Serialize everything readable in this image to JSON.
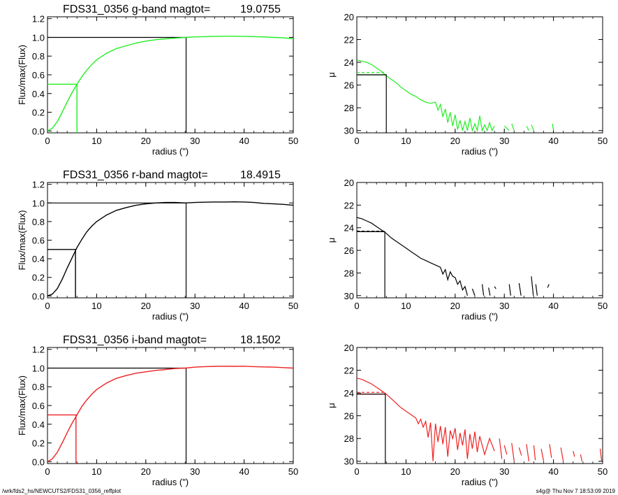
{
  "footer": {
    "left": "/wrk/fds2_hs/NEWCUTS2/FDS31_0356_reffplot",
    "right": "s4g@  Thu Nov  7 18:53:09 2019"
  },
  "chart_data": [
    {
      "type": "line",
      "panel": "g-growth",
      "title": "FDS31_0356 g-band  magtot=",
      "title_value": "19.0755",
      "xlabel": "radius (\")",
      "ylabel": "Flux/max(Flux)",
      "xlim": [
        0,
        50
      ],
      "ylim": [
        -0.02,
        1.22
      ],
      "xticks": [
        0,
        10,
        20,
        30,
        40,
        50
      ],
      "yticks": [
        "0.0",
        "0.2",
        "0.4",
        "0.6",
        "0.8",
        "1.0",
        "1.2"
      ],
      "color": "#22ee22",
      "grid": false,
      "series": [
        {
          "x": [
            0,
            1,
            2,
            3,
            4,
            5,
            6,
            7,
            8,
            9,
            10,
            12,
            14,
            16,
            18,
            20,
            22,
            24,
            26,
            28,
            30,
            32,
            34,
            36,
            38,
            40,
            42,
            44,
            46,
            48,
            50
          ],
          "values": [
            0,
            0.03,
            0.1,
            0.2,
            0.31,
            0.41,
            0.5,
            0.58,
            0.65,
            0.71,
            0.76,
            0.83,
            0.88,
            0.91,
            0.94,
            0.96,
            0.975,
            0.985,
            0.992,
            1.0,
            1.005,
            1.008,
            1.01,
            1.012,
            1.012,
            1.01,
            1.008,
            1.005,
            1.0,
            0.995,
            0.985
          ]
        }
      ],
      "annotations": {
        "r_half": 6.0,
        "half_level": 0.5,
        "r_total": 28.2,
        "total_level": 1.0
      }
    },
    {
      "type": "line",
      "panel": "g-profile",
      "xlabel": "radius (\")",
      "ylabel": "μ",
      "xlim": [
        0,
        50
      ],
      "ylim": [
        30.2,
        20
      ],
      "inverted_y": true,
      "xticks": [
        0,
        10,
        20,
        30,
        40,
        50
      ],
      "yticks": [
        20,
        22,
        24,
        26,
        28,
        30
      ],
      "color": "#22ee22",
      "grid": false,
      "series": [
        {
          "x": [
            0,
            1,
            2,
            3,
            4,
            5,
            6,
            7,
            8,
            9,
            10,
            11,
            12,
            13,
            14,
            15,
            16,
            16.5,
            17,
            17.5,
            18,
            18.5,
            19,
            19.5,
            20,
            20.5,
            21,
            21.5,
            22,
            22.5,
            23,
            23.5,
            24,
            24.5,
            25,
            25.5,
            26,
            26.5,
            27,
            27.5,
            28
          ],
          "values": [
            23.8,
            23.9,
            24.0,
            24.2,
            24.5,
            24.8,
            25.2,
            25.5,
            25.8,
            26.2,
            26.5,
            26.8,
            27.0,
            27.3,
            27.5,
            27.6,
            27.5,
            28.2,
            27.7,
            28.8,
            28.1,
            29.3,
            28.4,
            29.6,
            28.6,
            29.9,
            29.1,
            30.0,
            29.2,
            30.0,
            28.9,
            30.0,
            29.4,
            30.0,
            28.7,
            30.0,
            29.5,
            30.0,
            29.3,
            30.0,
            29.6
          ]
        }
      ],
      "extra_segments": [
        [
          30,
          29.6,
          31,
          30.0
        ],
        [
          31.5,
          29.4,
          32,
          30.0
        ],
        [
          34.5,
          29.6,
          35,
          30.0
        ],
        [
          35.5,
          29.5,
          36,
          30.0
        ],
        [
          39.8,
          29.4,
          40,
          30.0
        ]
      ],
      "annotations": {
        "r_half": 6.0,
        "mu_half": 25.1,
        "mu_mean": 24.9
      }
    },
    {
      "type": "line",
      "panel": "r-growth",
      "title": "FDS31_0356 r-band  magtot=",
      "title_value": "18.4915",
      "xlabel": "radius (\")",
      "ylabel": "Flux/max(Flux)",
      "xlim": [
        0,
        50
      ],
      "ylim": [
        -0.02,
        1.22
      ],
      "xticks": [
        0,
        10,
        20,
        30,
        40,
        50
      ],
      "yticks": [
        "0.0",
        "0.2",
        "0.4",
        "0.6",
        "0.8",
        "1.0",
        "1.2"
      ],
      "color": "#000000",
      "grid": false,
      "series": [
        {
          "x": [
            0,
            1,
            2,
            3,
            4,
            5,
            6,
            7,
            8,
            9,
            10,
            12,
            14,
            16,
            18,
            20,
            22,
            24,
            26,
            28,
            30,
            32,
            34,
            36,
            38,
            40,
            42,
            44,
            46,
            48,
            50
          ],
          "values": [
            0,
            0.02,
            0.08,
            0.18,
            0.3,
            0.41,
            0.52,
            0.61,
            0.69,
            0.75,
            0.8,
            0.87,
            0.92,
            0.95,
            0.975,
            0.99,
            1.0,
            1.005,
            1.005,
            1.0,
            1.005,
            1.008,
            1.01,
            1.01,
            1.012,
            1.01,
            1.005,
            0.995,
            0.99,
            0.985,
            0.975
          ]
        }
      ],
      "annotations": {
        "r_half": 5.7,
        "half_level": 0.5,
        "r_total": 28.2,
        "total_level": 1.0
      }
    },
    {
      "type": "line",
      "panel": "r-profile",
      "xlabel": "radius (\")",
      "ylabel": "μ",
      "xlim": [
        0,
        50
      ],
      "ylim": [
        30.2,
        20
      ],
      "inverted_y": true,
      "xticks": [
        0,
        10,
        20,
        30,
        40,
        50
      ],
      "yticks": [
        20,
        22,
        24,
        26,
        28,
        30
      ],
      "color": "#000000",
      "grid": false,
      "series": [
        {
          "x": [
            0,
            1,
            2,
            3,
            4,
            5,
            6,
            7,
            8,
            9,
            10,
            11,
            12,
            13,
            14,
            15,
            16,
            17,
            17.5,
            18,
            18.5,
            19,
            19.5,
            20,
            20.5,
            21,
            21.5,
            22,
            22.5
          ],
          "values": [
            23.1,
            23.2,
            23.4,
            23.6,
            23.9,
            24.2,
            24.5,
            24.9,
            25.2,
            25.5,
            25.8,
            26.1,
            26.4,
            26.7,
            26.9,
            27.1,
            27.3,
            27.5,
            28.1,
            27.7,
            28.6,
            27.9,
            28.3,
            28.4,
            29.0,
            28.7,
            29.5,
            29.2,
            30.0
          ]
        }
      ],
      "extra_segments": [
        [
          23.5,
          29.4,
          24,
          30.0
        ],
        [
          25.5,
          29.0,
          25.8,
          30.0
        ],
        [
          26.8,
          29.3,
          27.1,
          30.0
        ],
        [
          28.0,
          29.2,
          28.3,
          29.4
        ],
        [
          31,
          29.0,
          31.3,
          30.0
        ],
        [
          33,
          28.9,
          33.4,
          30.0
        ],
        [
          35.5,
          28.3,
          35.9,
          30.0
        ],
        [
          36.4,
          29.0,
          36.7,
          30.0
        ],
        [
          38.8,
          29.3,
          39.1,
          29.0
        ]
      ],
      "annotations": {
        "r_half": 5.7,
        "mu_half": 24.35,
        "mu_mean": 24.3
      }
    },
    {
      "type": "line",
      "panel": "i-growth",
      "title": "FDS31_0356 i-band  magtot=",
      "title_value": "18.1502",
      "xlabel": "radius (\")",
      "ylabel": "Flux/max(Flux)",
      "xlim": [
        0,
        50
      ],
      "ylim": [
        -0.02,
        1.22
      ],
      "xticks": [
        0,
        10,
        20,
        30,
        40,
        50
      ],
      "yticks": [
        "0.0",
        "0.2",
        "0.4",
        "0.6",
        "0.8",
        "1.0",
        "1.2"
      ],
      "color": "#ee2222",
      "grid": false,
      "series": [
        {
          "x": [
            0,
            1,
            2,
            3,
            4,
            5,
            6,
            7,
            8,
            9,
            10,
            12,
            14,
            16,
            18,
            20,
            22,
            24,
            26,
            28,
            30,
            32,
            34,
            36,
            38,
            40,
            42,
            44,
            46,
            48,
            50
          ],
          "values": [
            0,
            0.03,
            0.1,
            0.2,
            0.31,
            0.41,
            0.5,
            0.59,
            0.66,
            0.72,
            0.77,
            0.84,
            0.89,
            0.92,
            0.945,
            0.96,
            0.975,
            0.985,
            0.995,
            1.0,
            1.01,
            1.015,
            1.018,
            1.02,
            1.018,
            1.02,
            1.015,
            1.012,
            1.01,
            1.005,
            1.0
          ]
        }
      ],
      "annotations": {
        "r_half": 5.8,
        "half_level": 0.5,
        "r_total": 28.2,
        "total_level": 1.0
      }
    },
    {
      "type": "line",
      "panel": "i-profile",
      "xlabel": "radius (\")",
      "ylabel": "μ",
      "xlim": [
        0,
        50
      ],
      "ylim": [
        30.2,
        20
      ],
      "inverted_y": true,
      "xticks": [
        0,
        10,
        20,
        30,
        40,
        50
      ],
      "yticks": [
        20,
        22,
        24,
        26,
        28,
        30
      ],
      "color": "#ee2222",
      "grid": false,
      "series": [
        {
          "x": [
            0,
            1,
            2,
            3,
            4,
            5,
            6,
            7,
            8,
            9,
            10,
            11,
            12,
            12.5,
            13,
            13.5,
            14,
            14.5,
            15,
            15.5,
            16,
            16.5,
            17,
            17.5,
            18,
            18.5,
            19,
            19.5,
            20,
            20.5,
            21,
            21.5,
            22,
            22.5,
            23,
            23.5,
            24,
            24.5,
            25,
            26,
            27,
            28
          ],
          "values": [
            22.7,
            22.8,
            23.0,
            23.2,
            23.5,
            23.8,
            24.1,
            24.5,
            24.9,
            25.3,
            25.6,
            25.9,
            26.2,
            26.7,
            26.3,
            27.0,
            26.5,
            27.9,
            26.6,
            30.0,
            26.7,
            28.3,
            26.9,
            28.5,
            27.0,
            29.6,
            27.3,
            28.0,
            27.1,
            29.0,
            27.5,
            28.6,
            27.2,
            29.8,
            27.6,
            28.9,
            27.4,
            29.2,
            27.8,
            29.4,
            28.0,
            29.1
          ]
        }
      ],
      "extra_segments": [
        [
          29,
          28.0,
          29.5,
          29.8
        ],
        [
          30,
          28.6,
          30.5,
          29.4
        ],
        [
          31.5,
          28.4,
          32,
          30.0
        ],
        [
          33,
          28.8,
          33.5,
          29.5
        ],
        [
          34.5,
          28.5,
          35,
          30.0
        ],
        [
          36,
          28.6,
          36.3,
          29.9
        ],
        [
          37.5,
          28.9,
          38,
          30.0
        ],
        [
          39.2,
          28.5,
          39.6,
          29.7
        ],
        [
          41.5,
          28.8,
          42,
          30.0
        ],
        [
          44,
          29.1,
          44.3,
          29.6
        ],
        [
          45.5,
          29.4,
          45.8,
          30.0
        ],
        [
          49.5,
          28.9,
          49.8,
          30.0
        ]
      ],
      "annotations": {
        "r_half": 5.8,
        "mu_half": 24.1,
        "mu_mean": 23.95
      }
    }
  ]
}
